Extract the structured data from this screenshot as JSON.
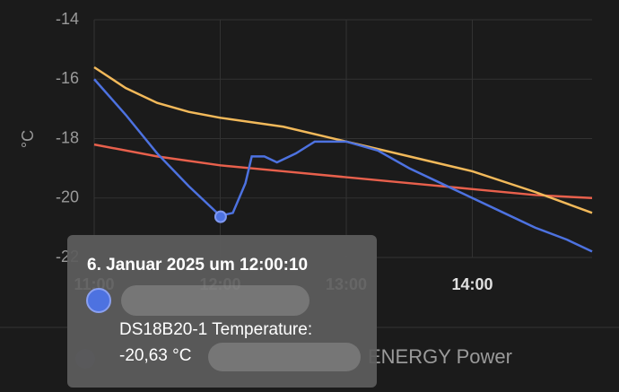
{
  "chart_data": {
    "type": "line",
    "y_label": "°C",
    "xlim": [
      11,
      14.95
    ],
    "xticks": [
      {
        "value": 11,
        "label": "11:00"
      },
      {
        "value": 12,
        "label": "12:00"
      },
      {
        "value": 13,
        "label": "13:00"
      },
      {
        "value": 14,
        "label": "14:00"
      }
    ],
    "ylim": [
      -22,
      -14
    ],
    "yticks": [
      -14,
      -16,
      -18,
      -20,
      -22
    ],
    "grid": true,
    "series": [
      {
        "color": "#e8604c",
        "x": [
          11.0,
          11.5,
          12.0,
          12.5,
          13.0,
          13.5,
          14.0,
          14.5,
          14.95
        ],
        "values": [
          -18.2,
          -18.6,
          -18.9,
          -19.1,
          -19.3,
          -19.5,
          -19.7,
          -19.9,
          -20.0
        ]
      },
      {
        "color": "#f2b95a",
        "x": [
          11.0,
          11.25,
          11.5,
          11.75,
          12.0,
          12.5,
          13.0,
          13.5,
          14.0,
          14.5,
          14.95
        ],
        "values": [
          -15.6,
          -16.3,
          -16.8,
          -17.1,
          -17.3,
          -17.6,
          -18.1,
          -18.6,
          -19.1,
          -19.8,
          -20.5
        ]
      },
      {
        "color": "#4d72e0",
        "x": [
          11.0,
          11.25,
          11.5,
          11.75,
          12.0,
          12.1,
          12.2,
          12.25,
          12.35,
          12.45,
          12.6,
          12.75,
          13.0,
          13.25,
          13.5,
          13.75,
          14.0,
          14.25,
          14.5,
          14.75,
          14.95
        ],
        "values": [
          -16.0,
          -17.2,
          -18.5,
          -19.6,
          -20.6,
          -20.5,
          -19.5,
          -18.6,
          -18.6,
          -18.8,
          -18.5,
          -18.1,
          -18.1,
          -18.4,
          -19.0,
          -19.5,
          -20.0,
          -20.5,
          -21.0,
          -21.4,
          -21.8
        ]
      }
    ],
    "legend_text": "ENERGY Power",
    "tooltip": {
      "title": "6. Januar 2025 um 12:00:10",
      "label": "DS18B20-1 Temperature:",
      "x": 12.003,
      "value": -20.63,
      "value_label": "-20,63 °C"
    }
  }
}
